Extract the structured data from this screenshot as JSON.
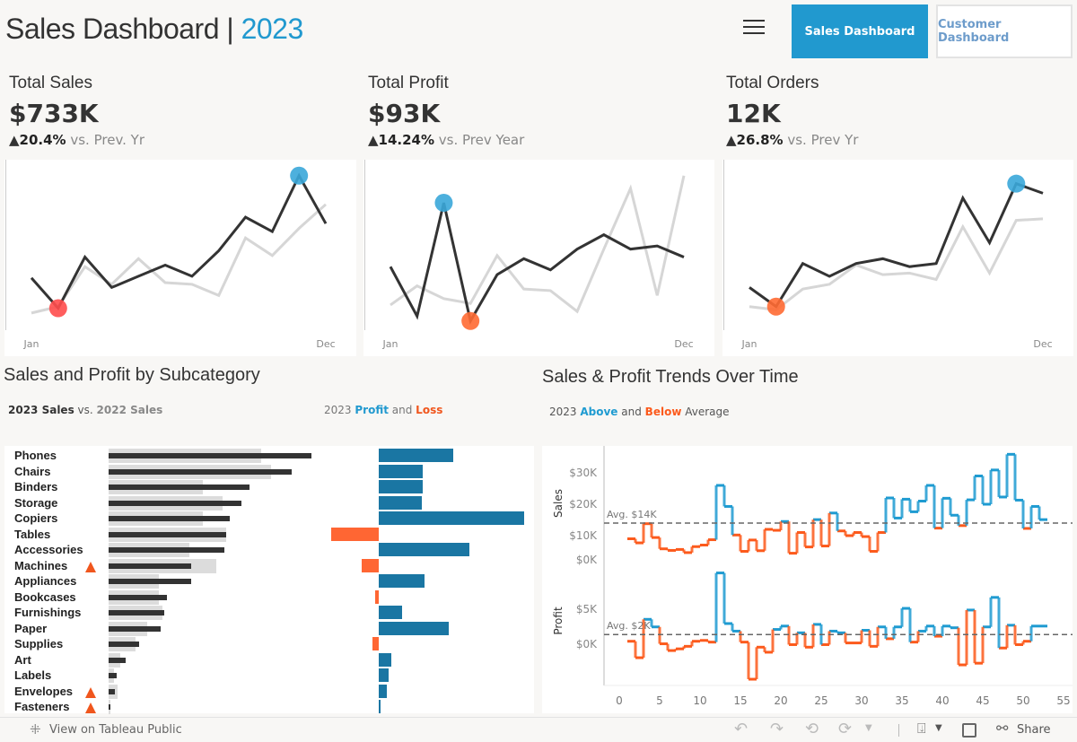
{
  "header": {
    "title": "Sales Dashboard | ",
    "year": "2023",
    "menu_icon": "hamburger-icon",
    "nav": [
      {
        "label": "Sales Dashboard",
        "active": true
      },
      {
        "label": "Customer Dashboard",
        "active": false
      }
    ]
  },
  "kpis": [
    {
      "title": "Total Sales",
      "value": "$733K",
      "delta": "20.4%",
      "delta_text": " vs. Prev. Yr"
    },
    {
      "title": "Total Profit",
      "value": "$93K",
      "delta": "14.24%",
      "delta_text": " vs. Prev Year"
    },
    {
      "title": "Total Orders",
      "value": "12K",
      "delta": "26.8%",
      "delta_text": " vs. Prev Yr"
    }
  ],
  "colors": {
    "accent": "#2199cf",
    "above": "#1f9bd1",
    "below": "#fc5a1c",
    "current_year": "#333333",
    "prev_year": "#d6d6d6",
    "low_marker": "#ff4d4d",
    "high_marker": "#3aa7d9"
  },
  "sparkline_axis": {
    "start": "Jan",
    "end": "Dec"
  },
  "subcategory": {
    "title": "Sales and Profit by Subcategory",
    "legend_sales_a": "2023 Sales",
    "legend_sales_vs": " vs. ",
    "legend_sales_b": "2022 Sales",
    "legend_profit_a": "2023 ",
    "legend_profit_b": "Profit",
    "legend_profit_c": " and ",
    "legend_profit_d": "Loss"
  },
  "trends": {
    "title": "Sales & Profit Trends Over Time",
    "legend_a": "2023 ",
    "legend_b": "Above",
    "legend_c": " and ",
    "legend_d": "Below",
    "legend_e": " Average"
  },
  "chart_data": [
    {
      "type": "line",
      "title": "Total Sales",
      "x": [
        "Jan",
        "Feb",
        "Mar",
        "Apr",
        "May",
        "Jun",
        "Jul",
        "Aug",
        "Sep",
        "Oct",
        "Nov",
        "Dec"
      ],
      "series": [
        {
          "values": [
            35,
            16,
            48,
            29,
            36,
            43,
            36,
            52,
            73,
            64,
            99,
            69
          ]
        },
        {
          "values": [
            13,
            17,
            42,
            31,
            47,
            32,
            31,
            24,
            60,
            49,
            66,
            81
          ]
        }
      ]
    },
    {
      "type": "line",
      "title": "Total Profit",
      "x": [
        "Jan",
        "Feb",
        "Mar",
        "Apr",
        "May",
        "Jun",
        "Jul",
        "Aug",
        "Sep",
        "Oct",
        "Nov",
        "Dec"
      ],
      "series": [
        {
          "values": [
            42,
            11,
            82,
            8,
            37,
            47,
            40,
            53,
            62,
            53,
            55,
            48
          ]
        },
        {
          "values": [
            18,
            30,
            22,
            19,
            49,
            28,
            27,
            14,
            53,
            91,
            24,
            99
          ]
        }
      ]
    },
    {
      "type": "line",
      "title": "Total Orders",
      "x": [
        "Jan",
        "Feb",
        "Mar",
        "Apr",
        "May",
        "Jun",
        "Jul",
        "Aug",
        "Sep",
        "Oct",
        "Nov",
        "Dec"
      ],
      "series": [
        {
          "values": [
            29,
            17,
            44,
            36,
            44,
            47,
            42,
            44,
            85,
            57,
            94,
            88
          ]
        },
        {
          "values": [
            17,
            15,
            28,
            31,
            43,
            37,
            38,
            34,
            67,
            38,
            71,
            72
          ]
        }
      ]
    },
    {
      "type": "bar",
      "title": "Sales and Profit by Subcategory",
      "categories": [
        "Phones",
        "Chairs",
        "Binders",
        "Storage",
        "Copiers",
        "Tables",
        "Accessories",
        "Machines",
        "Appliances",
        "Bookcases",
        "Furnishings",
        "Paper",
        "Supplies",
        "Art",
        "Labels",
        "Envelopes",
        "Fasteners"
      ],
      "flagged": [
        "Machines",
        "Envelopes",
        "Fasteners"
      ],
      "series": [
        {
          "name": "2023 Sales",
          "values": [
            105,
            95,
            73,
            69,
            63,
            61,
            60,
            43,
            43,
            30,
            29,
            27,
            16,
            9,
            4,
            3.4,
            0.9
          ]
        },
        {
          "name": "2022 Sales",
          "values": [
            79,
            84,
            49,
            59,
            49,
            61,
            42,
            56,
            26,
            26,
            28,
            20,
            14,
            6,
            3,
            4.6,
            0.9
          ]
        },
        {
          "name": "2023 Profit",
          "values": [
            12.8,
            7.6,
            7.6,
            7.4,
            25,
            -8.2,
            15.6,
            -3,
            7.8,
            -0.6,
            4,
            12,
            -1.1,
            2.1,
            1.7,
            1.4,
            0.2
          ]
        }
      ]
    },
    {
      "type": "line",
      "title": "Sales & Profit Trends Over Time",
      "x_ticks": [
        "0",
        "5",
        "10",
        "15",
        "20",
        "25",
        "30",
        "35",
        "40",
        "45",
        "50",
        "55"
      ],
      "sales": {
        "label": "Sales",
        "y_ticks": [
          "$0K",
          "$10K",
          "$20K",
          "$30K"
        ],
        "average": 14,
        "average_label": "Avg. $14K",
        "values": [
          9,
          7.7,
          13.8,
          9.4,
          5.8,
          5.3,
          5.6,
          4.6,
          6.5,
          7,
          8.7,
          26,
          19.3,
          10.2,
          5,
          8.6,
          5.2,
          12,
          11.7,
          14.5,
          4.4,
          11,
          6.4,
          15.1,
          6.7,
          17.2,
          11.5,
          10,
          11,
          9.7,
          5,
          11,
          22,
          15.6,
          21.6,
          17.6,
          21,
          26,
          12.4,
          21.9,
          16.5,
          13.2,
          21.4,
          29,
          20,
          30.9,
          22.3,
          35.9,
          21.3,
          12.3,
          19.3,
          15.1
        ]
      },
      "profit": {
        "label": "Profit",
        "y_ticks": [
          "$0K",
          "$5K"
        ],
        "average": 2,
        "average_label": "Avg. $2K",
        "values": [
          1.2,
          -0.75,
          3.8,
          2.9,
          0.9,
          0.1,
          0.3,
          0.6,
          1.2,
          1.3,
          1.1,
          9.3,
          3.3,
          2.4,
          1.1,
          -3.3,
          0.5,
          -0.1,
          2.6,
          3,
          0.8,
          2.2,
          0.5,
          3.2,
          0.8,
          2.4,
          2.2,
          1,
          1,
          2.5,
          0.6,
          2.9,
          1.5,
          2.9,
          5.1,
          1.1,
          2.4,
          3,
          1.8,
          3,
          2.8,
          -1.6,
          4.9,
          -1.4,
          2.9,
          6.4,
          0.4,
          3.1,
          0.8,
          1.2,
          3,
          3
        ]
      }
    }
  ],
  "footer": {
    "view_label": "View on Tableau Public",
    "share_label": "Share",
    "icons": [
      "undo-icon",
      "redo-icon",
      "revert-icon",
      "refresh-icon",
      "download-icon",
      "fullscreen-icon",
      "share-icon"
    ]
  }
}
